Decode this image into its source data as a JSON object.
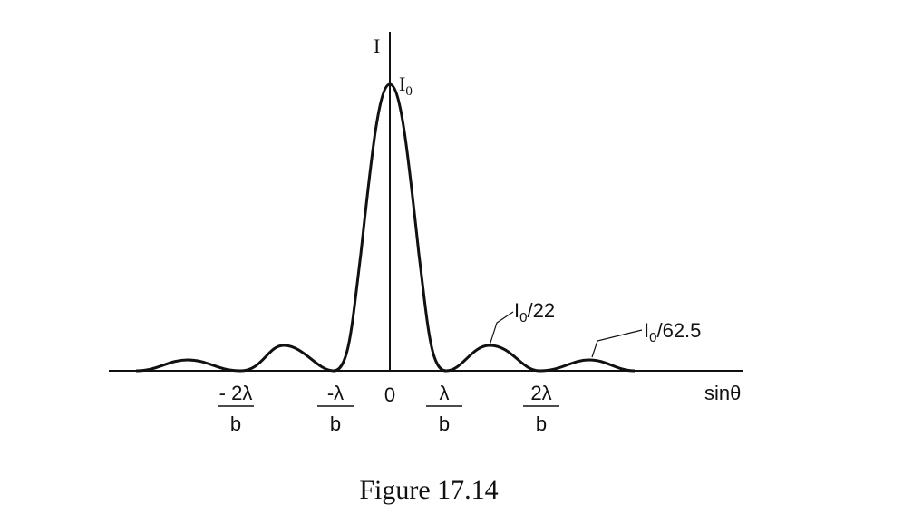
{
  "axis": {
    "y_label": "I",
    "x_label": "sinθ"
  },
  "peak_label": {
    "text": "I",
    "sub": "0"
  },
  "annotations": [
    {
      "text": "I",
      "sub": "0",
      "suffix": "/22"
    },
    {
      "text": "I",
      "sub": "0",
      "suffix": "/62.5"
    }
  ],
  "ticks": [
    {
      "numerator": "- 2λ",
      "denominator": "b"
    },
    {
      "numerator": "-λ",
      "denominator": "b"
    },
    {
      "numerator": "0"
    },
    {
      "numerator": "λ",
      "denominator": "b"
    },
    {
      "numerator": "2λ",
      "denominator": "b"
    }
  ],
  "caption": "Figure 17.14"
}
